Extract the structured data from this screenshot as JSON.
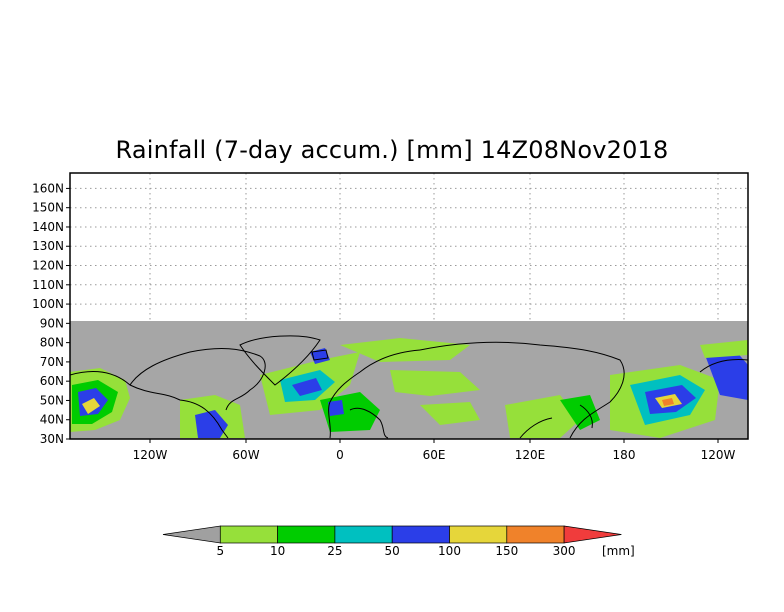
{
  "title": "Rainfall (7-day accum.) [mm] 14Z08Nov2018",
  "lat_labels": [
    "160N",
    "150N",
    "140N",
    "130N",
    "120N",
    "110N",
    "100N",
    "90N",
    "80N",
    "70N",
    "60N",
    "50N",
    "40N",
    "30N"
  ],
  "lon_labels": [
    "120W",
    "60W",
    "0",
    "60E",
    "120E",
    "180",
    "120W"
  ],
  "colorbar": {
    "unit": "[mm]",
    "levels": [
      "5",
      "10",
      "25",
      "50",
      "100",
      "150",
      "300"
    ],
    "colors": [
      "#a0a0a0",
      "#96e03a",
      "#00cc00",
      "#00c0c0",
      "#2b3ee8",
      "#e6d63a",
      "#f0822a",
      "#f03c3c"
    ]
  },
  "colors": {
    "missing_gray": "#a6a6a6",
    "coast": "#000000"
  }
}
